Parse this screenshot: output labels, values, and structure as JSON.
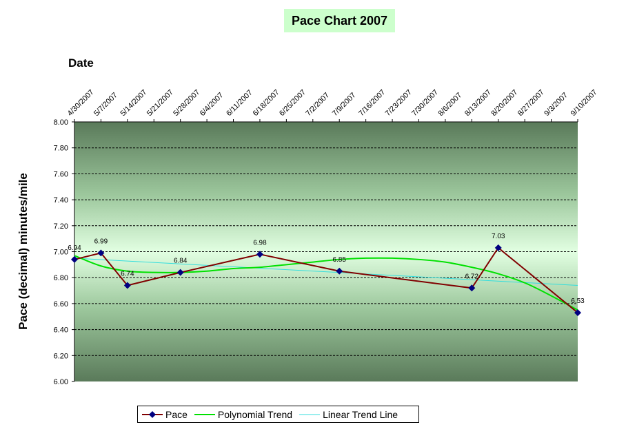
{
  "chart_data": {
    "type": "line",
    "title": "Pace Chart 2007",
    "xlabel": "Date",
    "ylabel": "Pace (decimal) minutes/mile",
    "x_tick_labels": [
      "4/30/2007",
      "5/7/2007",
      "5/14/2007",
      "5/21/2007",
      "5/28/2007",
      "6/4/2007",
      "6/11/2007",
      "6/18/2007",
      "6/25/2007",
      "7/2/2007",
      "7/9/2007",
      "7/16/2007",
      "7/23/2007",
      "7/30/2007",
      "8/6/2007",
      "8/13/2007",
      "8/20/2007",
      "8/27/2007",
      "9/3/2007",
      "9/10/2007"
    ],
    "x_start": "4/30/2007",
    "x_end": "9/10/2007",
    "y_tick_labels": [
      "6.00",
      "6.20",
      "6.40",
      "6.60",
      "6.80",
      "7.00",
      "7.20",
      "7.40",
      "7.60",
      "7.80",
      "8.00"
    ],
    "ylim": [
      6.0,
      8.0
    ],
    "grid": true,
    "legend_position": "bottom",
    "series": [
      {
        "name": "Pace",
        "color": "#800000",
        "marker_color": "#000080",
        "x": [
          "4/30/2007",
          "5/7/2007",
          "5/14/2007",
          "5/28/2007",
          "6/18/2007",
          "7/9/2007",
          "8/13/2007",
          "8/20/2007",
          "9/10/2007"
        ],
        "values": [
          6.94,
          6.99,
          6.74,
          6.84,
          6.98,
          6.85,
          6.72,
          7.03,
          6.53
        ],
        "labels": [
          "6.94",
          "6.99",
          "6.74",
          "6.84",
          "6.98",
          "6.85",
          "6.72",
          "7.03",
          "6.53"
        ]
      },
      {
        "name": "Polynomial Trend",
        "color": "#00e000",
        "x": [
          "4/30/2007",
          "5/7/2007",
          "5/14/2007",
          "5/21/2007",
          "5/28/2007",
          "6/4/2007",
          "6/11/2007",
          "6/18/2007",
          "6/25/2007",
          "7/2/2007",
          "7/9/2007",
          "7/16/2007",
          "7/23/2007",
          "7/30/2007",
          "8/6/2007",
          "8/13/2007",
          "8/20/2007",
          "8/27/2007",
          "9/3/2007",
          "9/10/2007"
        ],
        "values": [
          6.97,
          6.89,
          6.85,
          6.84,
          6.84,
          6.85,
          6.87,
          6.88,
          6.9,
          6.92,
          6.94,
          6.95,
          6.95,
          6.94,
          6.92,
          6.88,
          6.83,
          6.76,
          6.66,
          6.55
        ]
      },
      {
        "name": "Linear Trend Line",
        "color": "#33dddd",
        "x": [
          "4/30/2007",
          "9/10/2007"
        ],
        "values": [
          6.95,
          6.74
        ]
      }
    ]
  }
}
